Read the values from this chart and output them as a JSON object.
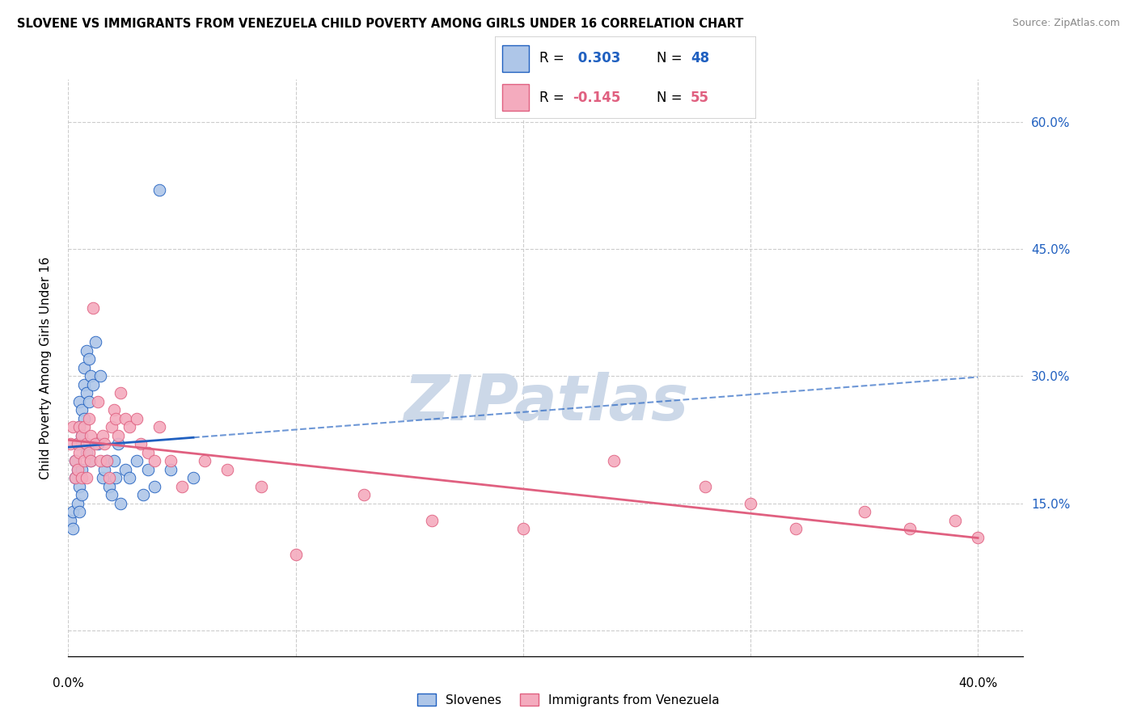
{
  "title": "SLOVENE VS IMMIGRANTS FROM VENEZUELA CHILD POVERTY AMONG GIRLS UNDER 16 CORRELATION CHART",
  "source": "Source: ZipAtlas.com",
  "ylabel": "Child Poverty Among Girls Under 16",
  "y_tick_labels": [
    "",
    "15.0%",
    "30.0%",
    "45.0%",
    "60.0%"
  ],
  "y_tick_values": [
    0.0,
    0.15,
    0.3,
    0.45,
    0.6
  ],
  "x_tick_values": [
    0.0,
    0.1,
    0.2,
    0.3,
    0.4
  ],
  "xlim": [
    0.0,
    0.42
  ],
  "ylim": [
    -0.03,
    0.65
  ],
  "slovene_color": "#aec6e8",
  "venezuela_color": "#f4abbe",
  "slovene_line_color": "#2060c0",
  "venezuela_line_color": "#e06080",
  "watermark": "ZIPatlas",
  "watermark_color": "#ccd8e8",
  "slovene_scatter_x": [
    0.001,
    0.002,
    0.002,
    0.003,
    0.003,
    0.004,
    0.004,
    0.004,
    0.005,
    0.005,
    0.005,
    0.005,
    0.006,
    0.006,
    0.006,
    0.006,
    0.007,
    0.007,
    0.007,
    0.008,
    0.008,
    0.008,
    0.009,
    0.009,
    0.01,
    0.01,
    0.011,
    0.012,
    0.013,
    0.014,
    0.015,
    0.016,
    0.017,
    0.018,
    0.019,
    0.02,
    0.021,
    0.022,
    0.023,
    0.025,
    0.027,
    0.03,
    0.033,
    0.035,
    0.038,
    0.04,
    0.045,
    0.055
  ],
  "slovene_scatter_y": [
    0.13,
    0.12,
    0.14,
    0.18,
    0.2,
    0.22,
    0.19,
    0.15,
    0.24,
    0.27,
    0.17,
    0.14,
    0.26,
    0.23,
    0.19,
    0.16,
    0.29,
    0.31,
    0.25,
    0.33,
    0.28,
    0.21,
    0.32,
    0.27,
    0.3,
    0.2,
    0.29,
    0.34,
    0.22,
    0.3,
    0.18,
    0.19,
    0.2,
    0.17,
    0.16,
    0.2,
    0.18,
    0.22,
    0.15,
    0.19,
    0.18,
    0.2,
    0.16,
    0.19,
    0.17,
    0.52,
    0.19,
    0.18
  ],
  "venezuela_scatter_x": [
    0.001,
    0.002,
    0.003,
    0.003,
    0.004,
    0.004,
    0.005,
    0.005,
    0.006,
    0.006,
    0.007,
    0.007,
    0.008,
    0.008,
    0.009,
    0.009,
    0.01,
    0.01,
    0.011,
    0.012,
    0.013,
    0.014,
    0.015,
    0.016,
    0.017,
    0.018,
    0.019,
    0.02,
    0.021,
    0.022,
    0.023,
    0.025,
    0.027,
    0.03,
    0.032,
    0.035,
    0.038,
    0.04,
    0.045,
    0.05,
    0.06,
    0.07,
    0.085,
    0.1,
    0.13,
    0.16,
    0.2,
    0.24,
    0.28,
    0.3,
    0.32,
    0.35,
    0.37,
    0.39,
    0.4
  ],
  "venezuela_scatter_y": [
    0.22,
    0.24,
    0.2,
    0.18,
    0.22,
    0.19,
    0.24,
    0.21,
    0.18,
    0.23,
    0.24,
    0.2,
    0.22,
    0.18,
    0.25,
    0.21,
    0.23,
    0.2,
    0.38,
    0.22,
    0.27,
    0.2,
    0.23,
    0.22,
    0.2,
    0.18,
    0.24,
    0.26,
    0.25,
    0.23,
    0.28,
    0.25,
    0.24,
    0.25,
    0.22,
    0.21,
    0.2,
    0.24,
    0.2,
    0.17,
    0.2,
    0.19,
    0.17,
    0.09,
    0.16,
    0.13,
    0.12,
    0.2,
    0.17,
    0.15,
    0.12,
    0.14,
    0.12,
    0.13,
    0.11
  ]
}
